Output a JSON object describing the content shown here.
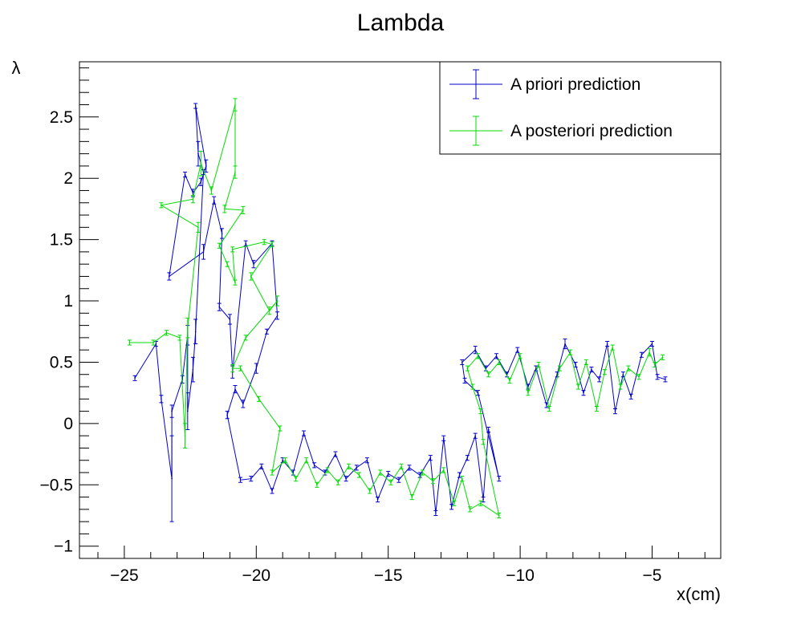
{
  "chart_data": {
    "type": "line",
    "title": "Lambda",
    "xlabel": "x(cm)",
    "ylabel": "λ",
    "xlim": [
      -26.7,
      -2.4
    ],
    "ylim": [
      -1.1,
      2.95
    ],
    "x_ticks": [
      -25,
      -20,
      -15,
      -10,
      -5
    ],
    "y_ticks": [
      -1,
      -0.5,
      0,
      0.5,
      1,
      1.5,
      2,
      2.5
    ],
    "grid": false,
    "legend_position": "top-right",
    "series": [
      {
        "name": "A priori prediction",
        "color": "#0000cc",
        "points": [
          [
            -24.6,
            0.37,
            0.02
          ],
          [
            -23.8,
            0.65,
            0.02
          ],
          [
            -23.6,
            0.2,
            0.03
          ],
          [
            -23.2,
            -0.45,
            0.35
          ],
          [
            -23.2,
            0.1,
            0.05
          ],
          [
            -22.8,
            0.36,
            0.03
          ],
          [
            -22.6,
            0.72,
            0.08
          ],
          [
            -22.6,
            0.1,
            0.15
          ],
          [
            -22.4,
            0.44,
            0.1
          ],
          [
            -22.3,
            0.75,
            0.1
          ],
          [
            -22.0,
            2.05,
            0.02
          ],
          [
            -22.2,
            2.2,
            0.1
          ],
          [
            -22.3,
            2.59,
            0.02
          ],
          [
            -21.9,
            2.1,
            0.05
          ],
          [
            -22.1,
            1.97,
            0.03
          ],
          [
            -22.4,
            1.88,
            0.03
          ],
          [
            -22.7,
            2.03,
            0.02
          ],
          [
            -23.3,
            1.2,
            0.03
          ],
          [
            -22.0,
            1.4,
            0.06
          ],
          [
            -21.6,
            1.82,
            0.03
          ],
          [
            -21.3,
            1.55,
            0.04
          ],
          [
            -21.4,
            0.95,
            0.03
          ],
          [
            -21.0,
            0.85,
            0.04
          ],
          [
            -20.9,
            0.42,
            0.05
          ],
          [
            -20.4,
            1.47,
            0.02
          ],
          [
            -20.1,
            1.3,
            0.03
          ],
          [
            -19.4,
            1.47,
            0.02
          ],
          [
            -19.2,
            0.88,
            0.03
          ],
          [
            -19.6,
            0.75,
            0.02
          ],
          [
            -20.0,
            0.45,
            0.04
          ],
          [
            -20.5,
            0.16,
            0.03
          ],
          [
            -20.8,
            0.28,
            0.03
          ],
          [
            -21.1,
            0.07,
            0.03
          ],
          [
            -20.6,
            -0.46,
            0.02
          ],
          [
            -20.2,
            -0.45,
            0.02
          ],
          [
            -19.8,
            -0.35,
            0.02
          ],
          [
            -19.4,
            -0.55,
            0.02
          ],
          [
            -19.0,
            -0.3,
            0.02
          ],
          [
            -18.6,
            -0.4,
            0.02
          ],
          [
            -18.2,
            -0.08,
            0.02
          ],
          [
            -17.8,
            -0.34,
            0.02
          ],
          [
            -17.4,
            -0.4,
            0.02
          ],
          [
            -17.0,
            -0.25,
            0.02
          ],
          [
            -16.6,
            -0.45,
            0.02
          ],
          [
            -16.2,
            -0.36,
            0.02
          ],
          [
            -15.8,
            -0.3,
            0.02
          ],
          [
            -15.4,
            -0.62,
            0.02
          ],
          [
            -15.0,
            -0.41,
            0.02
          ],
          [
            -14.6,
            -0.46,
            0.02
          ],
          [
            -14.2,
            -0.36,
            0.02
          ],
          [
            -13.8,
            -0.42,
            0.02
          ],
          [
            -13.4,
            -0.28,
            0.02
          ],
          [
            -13.2,
            -0.73,
            0.02
          ],
          [
            -12.9,
            -0.12,
            0.02
          ],
          [
            -12.6,
            -0.68,
            0.02
          ],
          [
            -12.3,
            -0.42,
            0.02
          ],
          [
            -12.0,
            -0.28,
            0.02
          ],
          [
            -11.7,
            -0.1,
            0.02
          ],
          [
            -11.4,
            -0.62,
            0.02
          ],
          [
            -11.2,
            -0.05,
            0.02
          ],
          [
            -10.8,
            -0.45,
            0.02
          ],
          [
            -11.6,
            0.25,
            0.02
          ],
          [
            -12.1,
            0.35,
            0.02
          ],
          [
            -12.2,
            0.5,
            0.02
          ],
          [
            -11.7,
            0.6,
            0.03
          ],
          [
            -11.3,
            0.45,
            0.02
          ],
          [
            -10.9,
            0.55,
            0.02
          ],
          [
            -10.5,
            0.4,
            0.02
          ],
          [
            -10.1,
            0.6,
            0.02
          ],
          [
            -9.7,
            0.3,
            0.02
          ],
          [
            -9.4,
            0.45,
            0.02
          ],
          [
            -9.0,
            0.15,
            0.02
          ],
          [
            -8.6,
            0.4,
            0.02
          ],
          [
            -8.3,
            0.65,
            0.04
          ],
          [
            -7.9,
            0.48,
            0.02
          ],
          [
            -7.6,
            0.25,
            0.02
          ],
          [
            -7.3,
            0.44,
            0.02
          ],
          [
            -7.0,
            0.36,
            0.02
          ],
          [
            -6.7,
            0.65,
            0.02
          ],
          [
            -6.4,
            0.1,
            0.02
          ],
          [
            -6.1,
            0.4,
            0.02
          ],
          [
            -5.8,
            0.22,
            0.02
          ],
          [
            -5.4,
            0.56,
            0.02
          ],
          [
            -5.0,
            0.65,
            0.02
          ],
          [
            -4.8,
            0.38,
            0.02
          ],
          [
            -4.5,
            0.36,
            0.02
          ]
        ]
      },
      {
        "name": "A posteriori prediction",
        "color": "#00dd00",
        "points": [
          [
            -24.8,
            0.66,
            0.02
          ],
          [
            -23.9,
            0.66,
            0.02
          ],
          [
            -23.4,
            0.74,
            0.02
          ],
          [
            -22.9,
            0.7,
            0.02
          ],
          [
            -22.7,
            -0.1,
            0.1
          ],
          [
            -22.6,
            0.78,
            0.08
          ],
          [
            -22.2,
            1.6,
            0.04
          ],
          [
            -23.6,
            1.78,
            0.02
          ],
          [
            -22.4,
            1.83,
            0.03
          ],
          [
            -22.1,
            2.12,
            0.1
          ],
          [
            -21.7,
            1.9,
            0.03
          ],
          [
            -20.8,
            2.6,
            0.05
          ],
          [
            -20.8,
            2.05,
            0.05
          ],
          [
            -21.2,
            1.75,
            0.03
          ],
          [
            -20.5,
            1.74,
            0.03
          ],
          [
            -21.4,
            1.45,
            0.02
          ],
          [
            -21.1,
            1.3,
            0.02
          ],
          [
            -20.8,
            1.15,
            0.02
          ],
          [
            -20.9,
            1.42,
            0.02
          ],
          [
            -19.7,
            1.48,
            0.02
          ],
          [
            -19.4,
            1.46,
            0.02
          ],
          [
            -20.2,
            1.2,
            0.03
          ],
          [
            -19.5,
            0.92,
            0.03
          ],
          [
            -19.2,
            1.0,
            0.04
          ],
          [
            -20.4,
            0.7,
            0.02
          ],
          [
            -20.9,
            0.45,
            0.03
          ],
          [
            -20.6,
            0.45,
            0.02
          ],
          [
            -19.9,
            0.2,
            0.02
          ],
          [
            -19.1,
            -0.04,
            0.02
          ],
          [
            -19.4,
            -0.4,
            0.02
          ],
          [
            -18.9,
            -0.3,
            0.02
          ],
          [
            -18.5,
            -0.45,
            0.02
          ],
          [
            -18.1,
            -0.3,
            0.02
          ],
          [
            -17.7,
            -0.5,
            0.02
          ],
          [
            -17.3,
            -0.38,
            0.02
          ],
          [
            -16.9,
            -0.48,
            0.02
          ],
          [
            -16.5,
            -0.35,
            0.02
          ],
          [
            -16.1,
            -0.42,
            0.02
          ],
          [
            -15.7,
            -0.55,
            0.02
          ],
          [
            -15.3,
            -0.4,
            0.02
          ],
          [
            -14.9,
            -0.48,
            0.02
          ],
          [
            -14.5,
            -0.35,
            0.02
          ],
          [
            -14.1,
            -0.6,
            0.02
          ],
          [
            -13.7,
            -0.4,
            0.02
          ],
          [
            -13.3,
            -0.47,
            0.02
          ],
          [
            -12.9,
            -0.38,
            0.02
          ],
          [
            -12.5,
            -0.65,
            0.02
          ],
          [
            -12.2,
            -0.45,
            0.02
          ],
          [
            -11.9,
            -0.7,
            0.02
          ],
          [
            -11.5,
            -0.65,
            0.02
          ],
          [
            -10.8,
            -0.75,
            0.02
          ],
          [
            -11.4,
            -0.15,
            0.02
          ],
          [
            -11.5,
            0.1,
            0.02
          ],
          [
            -11.8,
            0.3,
            0.02
          ],
          [
            -12.0,
            0.45,
            0.02
          ],
          [
            -11.6,
            0.55,
            0.02
          ],
          [
            -11.2,
            0.4,
            0.02
          ],
          [
            -10.8,
            0.5,
            0.02
          ],
          [
            -10.4,
            0.35,
            0.02
          ],
          [
            -10.0,
            0.55,
            0.02
          ],
          [
            -9.7,
            0.25,
            0.02
          ],
          [
            -9.3,
            0.48,
            0.02
          ],
          [
            -8.9,
            0.12,
            0.02
          ],
          [
            -8.5,
            0.45,
            0.02
          ],
          [
            -8.1,
            0.58,
            0.02
          ],
          [
            -7.8,
            0.3,
            0.02
          ],
          [
            -7.5,
            0.5,
            0.02
          ],
          [
            -7.1,
            0.12,
            0.02
          ],
          [
            -6.8,
            0.42,
            0.02
          ],
          [
            -6.5,
            0.62,
            0.02
          ],
          [
            -6.2,
            0.3,
            0.02
          ],
          [
            -5.9,
            0.45,
            0.02
          ],
          [
            -5.5,
            0.38,
            0.02
          ],
          [
            -5.1,
            0.58,
            0.03
          ],
          [
            -4.9,
            0.48,
            0.02
          ],
          [
            -4.6,
            0.54,
            0.02
          ]
        ]
      }
    ]
  }
}
